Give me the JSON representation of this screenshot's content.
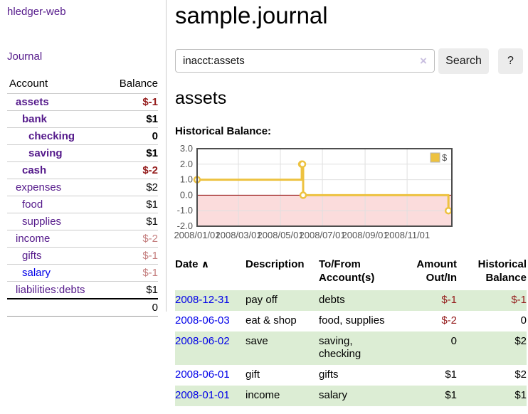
{
  "app": {
    "title": "hledger-web"
  },
  "sidebar": {
    "journal_link": "Journal",
    "accounts": {
      "headers": {
        "account": "Account",
        "balance": "Balance"
      },
      "rows": [
        {
          "name": "assets",
          "balance": "$-1",
          "depth": 1,
          "matched": true,
          "neg": "dark",
          "link_color": "purple"
        },
        {
          "name": "bank",
          "balance": "$1",
          "depth": 2,
          "matched": true,
          "neg": "none",
          "link_color": "purple"
        },
        {
          "name": "checking",
          "balance": "0",
          "depth": 3,
          "matched": true,
          "neg": "none",
          "link_color": "purple"
        },
        {
          "name": "saving",
          "balance": "$1",
          "depth": 3,
          "matched": true,
          "neg": "none",
          "link_color": "purple"
        },
        {
          "name": "cash",
          "balance": "$-2",
          "depth": 2,
          "matched": true,
          "neg": "dark",
          "link_color": "purple"
        },
        {
          "name": "expenses",
          "balance": "$2",
          "depth": 1,
          "matched": false,
          "neg": "none",
          "link_color": "purple"
        },
        {
          "name": "food",
          "balance": "$1",
          "depth": 2,
          "matched": false,
          "neg": "none",
          "link_color": "purple"
        },
        {
          "name": "supplies",
          "balance": "$1",
          "depth": 2,
          "matched": false,
          "neg": "none",
          "link_color": "purple"
        },
        {
          "name": "income",
          "balance": "$-2",
          "depth": 1,
          "matched": false,
          "neg": "light",
          "link_color": "purple"
        },
        {
          "name": "gifts",
          "balance": "$-1",
          "depth": 2,
          "matched": false,
          "neg": "light",
          "link_color": "purple"
        },
        {
          "name": "salary",
          "balance": "$-1",
          "depth": 2,
          "matched": false,
          "neg": "light",
          "link_color": "blue"
        },
        {
          "name": "liabilities:debts",
          "balance": "$1",
          "depth": 1,
          "matched": false,
          "neg": "none",
          "link_color": "purple"
        }
      ],
      "total": "0"
    }
  },
  "main": {
    "title": "sample.journal",
    "search": {
      "value": "inacct:assets",
      "clear_icon": "×",
      "button_label": "Search",
      "help_label": "?"
    },
    "account_heading": "assets",
    "register": {
      "headers": {
        "date": "Date",
        "description": "Description",
        "accounts": "To/From Account(s)",
        "amount": "Amount Out/In",
        "balance": "Historical Balance"
      },
      "sort_icon": "∧",
      "rows": [
        {
          "date": "2008-12-31",
          "description": "pay off",
          "accounts": "debts",
          "amount": "$-1",
          "amount_neg": true,
          "balance": "$-1",
          "balance_neg": true
        },
        {
          "date": "2008-06-03",
          "description": "eat & shop",
          "accounts": "food, supplies",
          "amount": "$-2",
          "amount_neg": true,
          "balance": "0",
          "balance_neg": false
        },
        {
          "date": "2008-06-02",
          "description": "save",
          "accounts": "saving,\nchecking",
          "amount": "0",
          "amount_neg": false,
          "balance": "$2",
          "balance_neg": false
        },
        {
          "date": "2008-06-01",
          "description": "gift",
          "accounts": "gifts",
          "amount": "$1",
          "amount_neg": false,
          "balance": "$2",
          "balance_neg": false
        },
        {
          "date": "2008-01-01",
          "description": "income",
          "accounts": "salary",
          "amount": "$1",
          "amount_neg": false,
          "balance": "$1",
          "balance_neg": false
        }
      ]
    }
  },
  "chart_data": {
    "type": "line",
    "title": "Historical Balance:",
    "step": true,
    "series": [
      {
        "name": "$",
        "color": "#edc240",
        "points": [
          [
            "2008-01-01",
            1
          ],
          [
            "2008-06-01",
            2
          ],
          [
            "2008-06-02",
            2
          ],
          [
            "2008-06-03",
            0
          ],
          [
            "2008-12-31",
            -1
          ]
        ]
      }
    ],
    "x_start": "2008-01-01",
    "x_domain_days": 370,
    "x_tick_labels": [
      "2008/01/01",
      "2008/03/01",
      "2008/05/01",
      "2008/07/01",
      "2008/09/01",
      "2008/11/01"
    ],
    "y_ticks": [
      "3.0",
      "2.0",
      "1.0",
      "0.0",
      "-1.0",
      "-2.0"
    ],
    "ylim": [
      -2,
      3
    ],
    "legend_position": "top-right",
    "colors": {
      "negative_region": "#fbdcdc",
      "zero_line": "#8b0000",
      "grid": "#e0e0e0",
      "border": "#4d4d4d"
    }
  }
}
